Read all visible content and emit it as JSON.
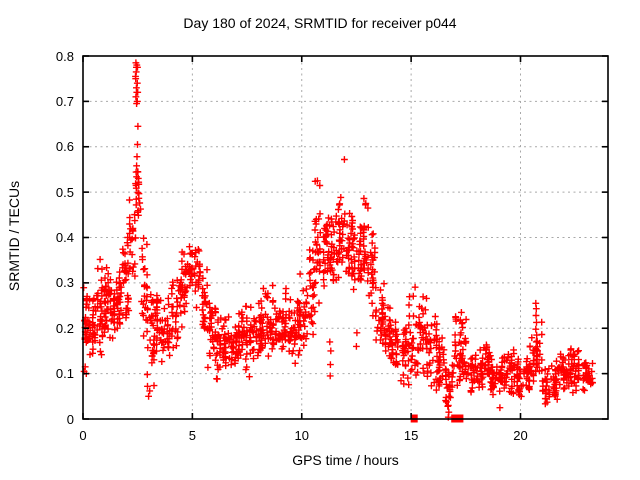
{
  "chart_data": {
    "type": "scatter",
    "title": "Day 180 of 2024, SRMTID for receiver p044",
    "xlabel": "GPS time / hours",
    "ylabel": "SRMTID / TECUs",
    "xlim": [
      0,
      24
    ],
    "ylim": [
      0,
      0.8
    ],
    "x_ticks": {
      "values": [
        0,
        5,
        10,
        15,
        20
      ],
      "labels": [
        "0",
        "5",
        "10",
        "15",
        "20"
      ]
    },
    "y_ticks": {
      "values": [
        0,
        0.1,
        0.2,
        0.3,
        0.4,
        0.5,
        0.6,
        0.7,
        0.8
      ],
      "labels": [
        "0",
        "0.1",
        "0.2",
        "0.3",
        "0.4",
        "0.5",
        "0.6",
        "0.7",
        "0.8"
      ]
    },
    "grid": true,
    "legend": false,
    "marker": "plus",
    "colors": {
      "points": "#ff0000",
      "grid": "#a9a9a9",
      "axis": "#000000",
      "background": "#ffffff",
      "text": "#000000"
    },
    "seed": 1806,
    "points": [
      [
        2.42,
        0.785
      ],
      [
        2.46,
        0.78
      ],
      [
        2.44,
        0.775
      ],
      [
        2.49,
        0.775
      ],
      [
        2.43,
        0.765
      ],
      [
        2.4,
        0.755
      ],
      [
        2.41,
        0.75
      ],
      [
        2.48,
        0.74
      ],
      [
        2.44,
        0.73
      ],
      [
        2.46,
        0.72
      ],
      [
        2.5,
        0.72
      ],
      [
        2.42,
        0.71
      ],
      [
        2.48,
        0.7
      ],
      [
        2.45,
        0.695
      ],
      [
        2.51,
        0.645
      ],
      [
        2.49,
        0.605
      ],
      [
        2.47,
        0.578
      ],
      [
        2.45,
        0.558
      ],
      [
        2.5,
        0.545
      ],
      [
        11.95,
        0.572
      ],
      [
        3.0,
        0.05
      ],
      [
        3.05,
        0.062
      ],
      [
        2.95,
        0.072
      ],
      [
        11.3,
        0.095
      ],
      [
        11.31,
        0.12
      ],
      [
        11.33,
        0.15
      ],
      [
        11.28,
        0.17
      ],
      [
        12.5,
        0.16
      ],
      [
        12.52,
        0.19
      ],
      [
        16.7,
        0.004
      ],
      [
        16.72,
        0.015
      ],
      [
        16.7,
        0.03
      ],
      [
        16.73,
        0.05
      ],
      [
        16.69,
        0.07
      ],
      [
        19.06,
        0.025
      ],
      [
        20.7,
        0.255
      ],
      [
        20.72,
        0.243
      ],
      [
        20.71,
        0.228
      ],
      [
        20.73,
        0.213
      ],
      [
        20.7,
        0.198
      ],
      [
        20.74,
        0.185
      ],
      [
        20.72,
        0.17
      ],
      [
        20.7,
        0.155
      ],
      [
        20.73,
        0.14
      ],
      [
        17.3,
        0.235
      ],
      [
        17.32,
        0.21
      ],
      [
        17.28,
        0.19
      ],
      [
        0.05,
        0.105
      ],
      [
        0.1,
        0.115
      ],
      [
        0.15,
        0.1
      ]
    ],
    "zero_squares": [
      15.14,
      16.99,
      17.05,
      17.11,
      17.17,
      17.23
    ],
    "clusters_format": "[x_start_hour, x_end_hour, n_points, y_min_TECU, y_max_TECU]",
    "clusters": [
      [
        0.0,
        0.3,
        28,
        0.1,
        0.32
      ],
      [
        0.3,
        0.6,
        26,
        0.11,
        0.28
      ],
      [
        0.6,
        0.9,
        30,
        0.13,
        0.37
      ],
      [
        0.9,
        1.2,
        30,
        0.15,
        0.35
      ],
      [
        1.2,
        1.5,
        26,
        0.15,
        0.32
      ],
      [
        1.5,
        1.8,
        28,
        0.17,
        0.35
      ],
      [
        1.8,
        2.1,
        30,
        0.18,
        0.43
      ],
      [
        2.1,
        2.4,
        24,
        0.3,
        0.5
      ],
      [
        2.35,
        2.65,
        20,
        0.42,
        0.58
      ],
      [
        2.65,
        2.95,
        24,
        0.15,
        0.45
      ],
      [
        2.95,
        3.25,
        26,
        0.06,
        0.3
      ],
      [
        3.25,
        3.6,
        28,
        0.13,
        0.3
      ],
      [
        3.6,
        4.0,
        30,
        0.1,
        0.28
      ],
      [
        4.0,
        4.35,
        26,
        0.12,
        0.32
      ],
      [
        4.35,
        4.7,
        26,
        0.18,
        0.4
      ],
      [
        4.7,
        5.0,
        24,
        0.22,
        0.42
      ],
      [
        5.0,
        5.35,
        24,
        0.2,
        0.41
      ],
      [
        5.35,
        5.7,
        26,
        0.15,
        0.35
      ],
      [
        5.7,
        6.05,
        28,
        0.1,
        0.3
      ],
      [
        6.05,
        6.4,
        28,
        0.08,
        0.26
      ],
      [
        6.4,
        6.75,
        26,
        0.1,
        0.24
      ],
      [
        6.75,
        7.1,
        26,
        0.1,
        0.22
      ],
      [
        7.1,
        7.45,
        28,
        0.1,
        0.27
      ],
      [
        7.45,
        7.8,
        28,
        0.08,
        0.26
      ],
      [
        7.8,
        8.15,
        28,
        0.1,
        0.28
      ],
      [
        8.15,
        8.5,
        28,
        0.12,
        0.32
      ],
      [
        8.5,
        8.85,
        26,
        0.12,
        0.3
      ],
      [
        8.85,
        9.2,
        26,
        0.12,
        0.28
      ],
      [
        9.2,
        9.55,
        26,
        0.13,
        0.3
      ],
      [
        9.55,
        9.9,
        28,
        0.12,
        0.28
      ],
      [
        9.9,
        10.25,
        26,
        0.14,
        0.33
      ],
      [
        10.25,
        10.6,
        26,
        0.17,
        0.4
      ],
      [
        10.6,
        10.95,
        28,
        0.22,
        0.54
      ],
      [
        10.95,
        11.3,
        30,
        0.27,
        0.47
      ],
      [
        11.3,
        11.65,
        30,
        0.28,
        0.48
      ],
      [
        11.65,
        12.0,
        30,
        0.3,
        0.5
      ],
      [
        12.0,
        12.35,
        30,
        0.28,
        0.47
      ],
      [
        12.35,
        12.7,
        28,
        0.25,
        0.45
      ],
      [
        12.7,
        13.05,
        28,
        0.25,
        0.5
      ],
      [
        13.05,
        13.4,
        26,
        0.2,
        0.42
      ],
      [
        13.4,
        13.75,
        26,
        0.13,
        0.32
      ],
      [
        13.75,
        14.1,
        28,
        0.1,
        0.26
      ],
      [
        14.1,
        14.45,
        26,
        0.09,
        0.23
      ],
      [
        14.45,
        14.8,
        24,
        0.07,
        0.22
      ],
      [
        14.8,
        15.15,
        24,
        0.05,
        0.28
      ],
      [
        15.15,
        15.5,
        26,
        0.08,
        0.3
      ],
      [
        15.5,
        15.85,
        26,
        0.07,
        0.28
      ],
      [
        15.85,
        16.2,
        24,
        0.05,
        0.24
      ],
      [
        16.2,
        16.55,
        24,
        0.03,
        0.2
      ],
      [
        16.55,
        16.9,
        24,
        0.01,
        0.16
      ],
      [
        16.9,
        17.25,
        26,
        0.02,
        0.26
      ],
      [
        17.25,
        17.6,
        24,
        0.05,
        0.24
      ],
      [
        17.6,
        17.95,
        24,
        0.05,
        0.16
      ],
      [
        17.95,
        18.3,
        26,
        0.04,
        0.16
      ],
      [
        18.3,
        18.65,
        26,
        0.05,
        0.18
      ],
      [
        18.65,
        19.0,
        26,
        0.04,
        0.16
      ],
      [
        19.0,
        19.35,
        26,
        0.04,
        0.15
      ],
      [
        19.35,
        19.7,
        26,
        0.05,
        0.17
      ],
      [
        19.7,
        20.05,
        26,
        0.04,
        0.15
      ],
      [
        20.05,
        20.4,
        24,
        0.05,
        0.16
      ],
      [
        20.4,
        20.7,
        20,
        0.07,
        0.19
      ],
      [
        20.7,
        21.0,
        18,
        0.08,
        0.22
      ],
      [
        21.0,
        21.35,
        24,
        0.02,
        0.12
      ],
      [
        21.35,
        21.7,
        26,
        0.04,
        0.14
      ],
      [
        21.7,
        22.05,
        26,
        0.05,
        0.15
      ],
      [
        22.05,
        22.4,
        26,
        0.05,
        0.16
      ],
      [
        22.4,
        22.75,
        26,
        0.05,
        0.16
      ],
      [
        22.75,
        23.1,
        24,
        0.06,
        0.15
      ],
      [
        23.1,
        23.3,
        12,
        0.07,
        0.13
      ]
    ]
  }
}
